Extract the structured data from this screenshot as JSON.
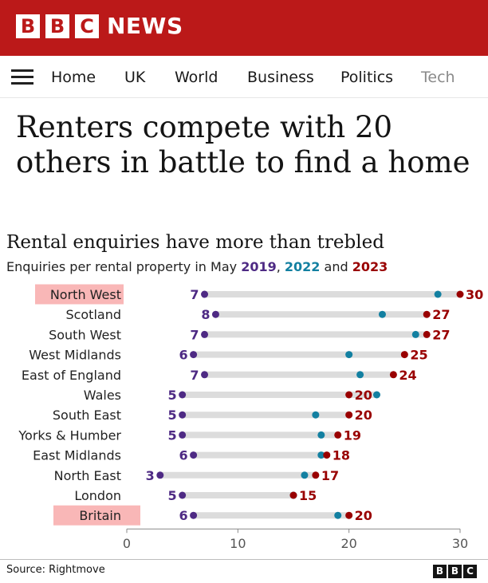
{
  "brand": {
    "letters": [
      "B",
      "B",
      "C"
    ],
    "news_label": "NEWS",
    "color": "#bb1919"
  },
  "nav": {
    "menu_icon": "hamburger-menu-icon",
    "items": [
      "Home",
      "UK",
      "World",
      "Business",
      "Politics",
      "Tech"
    ]
  },
  "article": {
    "headline": "Renters compete with 20 others in battle to find a home"
  },
  "chart": {
    "title": "Rental enquiries have more than trebled",
    "subtitle_prefix": "Enquiries per rental property in May ",
    "year_a": "2019",
    "sep1": ", ",
    "year_b": "2022",
    "sep2": " and ",
    "year_c": "2023"
  },
  "chart_data": {
    "type": "dot",
    "title": "Rental enquiries have more than trebled",
    "subtitle": "Enquiries per rental property in May 2019, 2022 and 2023",
    "categories": [
      "North West",
      "Scotland",
      "South West",
      "West Midlands",
      "East of England",
      "Wales",
      "South East",
      "Yorks & Humber",
      "East Midlands",
      "North East",
      "London",
      "Britain"
    ],
    "highlighted": [
      "North West",
      "Britain"
    ],
    "series": [
      {
        "name": "2019",
        "color": "#4e2a84",
        "values": [
          7,
          8,
          7,
          6,
          7,
          5,
          5,
          5,
          6,
          3,
          5,
          6
        ]
      },
      {
        "name": "2022",
        "color": "#1380a1",
        "values": [
          28,
          23,
          26,
          20,
          21,
          22.5,
          17,
          17.5,
          17.5,
          16,
          15,
          19
        ]
      },
      {
        "name": "2023",
        "color": "#990000",
        "values": [
          30,
          27,
          27,
          25,
          24,
          20,
          20,
          19,
          18,
          17,
          15,
          20
        ]
      }
    ],
    "labeled_series": [
      "2019",
      "2023"
    ],
    "xlim": [
      0,
      30
    ],
    "xticks": [
      0,
      10,
      20,
      30
    ],
    "xlabel": "",
    "ylabel": ""
  },
  "footer": {
    "source": "Source: Rightmove",
    "logo_letters": [
      "B",
      "B",
      "C"
    ]
  }
}
